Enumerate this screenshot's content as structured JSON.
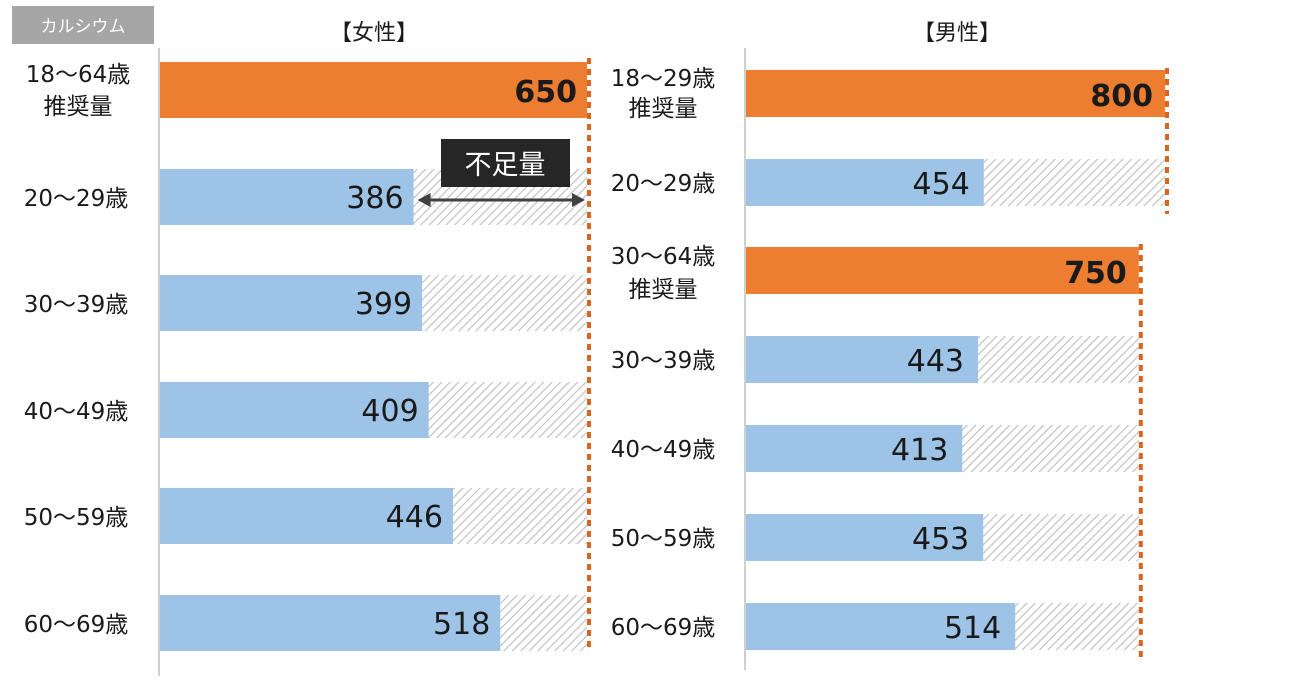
{
  "nutrient_tag": "カルシウム",
  "chart_data": [
    {
      "type": "bar",
      "orientation": "horizontal",
      "title": "【女性】",
      "xlim": [
        0,
        650
      ],
      "recommended": [
        {
          "label_line1": "18～64歳",
          "label_line2": "推奨量",
          "value": 650
        }
      ],
      "categories": [
        "20～29歳",
        "30～39歳",
        "40～49歳",
        "50～59歳",
        "60～69歳"
      ],
      "values": [
        386,
        399,
        409,
        446,
        518
      ],
      "annotation": "不足量"
    },
    {
      "type": "bar",
      "orientation": "horizontal",
      "title": "【男性】",
      "xlim": [
        0,
        800
      ],
      "recommended": [
        {
          "label_line1": "18～29歳",
          "label_line2": "推奨量",
          "value": 800
        },
        {
          "label_line1": "30～64歳",
          "label_line2": "推奨量",
          "value": 750
        }
      ],
      "categories": [
        "20～29歳",
        "30～39歳",
        "40～49歳",
        "50～59歳",
        "60～69歳"
      ],
      "values": [
        454,
        443,
        413,
        453,
        514
      ]
    }
  ],
  "colors": {
    "recommended": "#ED7D31",
    "intake": "#9DC3E6",
    "shortfall_hatch": "#bdbdbd",
    "reference_line": "#D9651E",
    "tag_bg": "#A6A6A6",
    "annotation_bg": "#262626",
    "axis": "#bfbfbf"
  }
}
